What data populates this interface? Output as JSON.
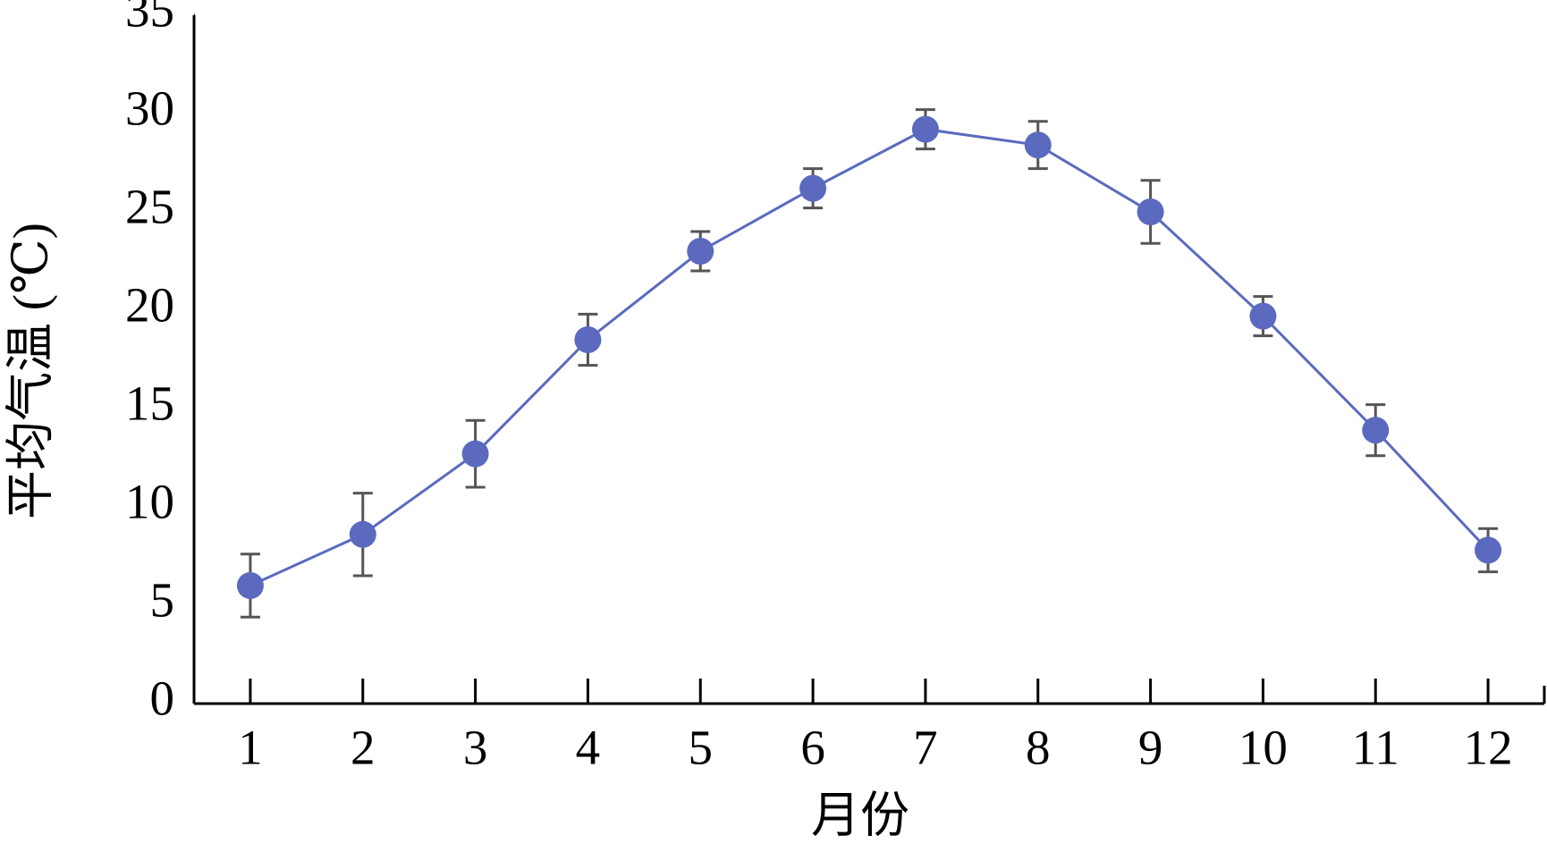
{
  "chart_data": {
    "type": "line",
    "x_label": "月份",
    "y_label": "平均气温 (℃)",
    "categories": [
      "1",
      "2",
      "3",
      "4",
      "5",
      "6",
      "7",
      "8",
      "9",
      "10",
      "11",
      "12"
    ],
    "series": [
      {
        "color": "#5b6abf",
        "values": [
          6.0,
          8.6,
          12.7,
          18.5,
          23.0,
          26.2,
          29.2,
          28.4,
          25.0,
          19.7,
          13.9,
          7.8
        ],
        "errors": [
          1.6,
          2.1,
          1.7,
          1.3,
          1.0,
          1.0,
          1.0,
          1.2,
          1.6,
          1.0,
          1.3,
          1.1
        ]
      }
    ],
    "ylim": [
      0,
      35
    ],
    "yticks": [
      0,
      5,
      10,
      15,
      20,
      25,
      30,
      35
    ]
  }
}
